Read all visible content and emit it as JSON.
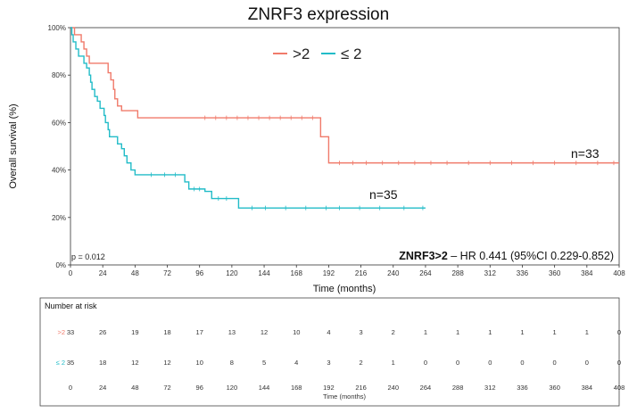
{
  "chart_data": {
    "type": "line",
    "title": "ZNRF3 expression",
    "xlabel": "Time (months)",
    "ylabel": "Overall survival (%)",
    "xlim": [
      0,
      408
    ],
    "ylim": [
      0,
      100
    ],
    "x_ticks": [
      "0",
      "24",
      "48",
      "72",
      "96",
      "120",
      "144",
      "168",
      "192",
      "216",
      "240",
      "264",
      "288",
      "312",
      "336",
      "360",
      "384",
      "408"
    ],
    "y_ticks": [
      "0%",
      "20%",
      "40%",
      "60%",
      "80%",
      "100%"
    ],
    "legend": {
      "position": "top",
      "separator": "—"
    },
    "series": [
      {
        "name": ">2",
        "color": "#F07A6A",
        "steps": [
          [
            0,
            100
          ],
          [
            3,
            97
          ],
          [
            8,
            94
          ],
          [
            10,
            91
          ],
          [
            12,
            88
          ],
          [
            14,
            85
          ],
          [
            28,
            81
          ],
          [
            30,
            78
          ],
          [
            32,
            74
          ],
          [
            33,
            70
          ],
          [
            35,
            67
          ],
          [
            38,
            65
          ],
          [
            50,
            62
          ],
          [
            185,
            62
          ],
          [
            186,
            54
          ],
          [
            190,
            54
          ],
          [
            192,
            43
          ],
          [
            408,
            43
          ]
        ],
        "censor_x": [
          100,
          108,
          116,
          124,
          132,
          140,
          148,
          156,
          164,
          172,
          180,
          200,
          210,
          220,
          232,
          244,
          256,
          268,
          280,
          296,
          312,
          328,
          344,
          360,
          376,
          392,
          404
        ],
        "end_label": "n=33"
      },
      {
        "name": "≤ 2",
        "color": "#22BCC8",
        "steps": [
          [
            0,
            100
          ],
          [
            1,
            97
          ],
          [
            2,
            94
          ],
          [
            4,
            91
          ],
          [
            6,
            88
          ],
          [
            10,
            85
          ],
          [
            12,
            83
          ],
          [
            14,
            80
          ],
          [
            15,
            77
          ],
          [
            16,
            74
          ],
          [
            18,
            71
          ],
          [
            20,
            69
          ],
          [
            22,
            66
          ],
          [
            25,
            63
          ],
          [
            26,
            60
          ],
          [
            28,
            57
          ],
          [
            29,
            54
          ],
          [
            35,
            51
          ],
          [
            38,
            49
          ],
          [
            40,
            46
          ],
          [
            42,
            43
          ],
          [
            45,
            40
          ],
          [
            48,
            38
          ],
          [
            82,
            38
          ],
          [
            85,
            35
          ],
          [
            88,
            32
          ],
          [
            100,
            31
          ],
          [
            105,
            28
          ],
          [
            122,
            28
          ],
          [
            125,
            24
          ],
          [
            264,
            24
          ]
        ],
        "censor_x": [
          60,
          70,
          78,
          92,
          96,
          110,
          116,
          135,
          145,
          160,
          175,
          190,
          200,
          215,
          230,
          248,
          262
        ],
        "end_label": "n=35"
      }
    ],
    "annotations": {
      "p_value": "p = 0.012",
      "hr_bold": "ZNRF3>2",
      "hr_rest": " – HR 0.441 (95%CI 0.229-0.852)"
    },
    "risk_table": {
      "title": "Number at risk",
      "xlabel": "Time (months)",
      "rows": [
        {
          "label": ">2",
          "color": "#F07A6A",
          "values": [
            "33",
            "26",
            "19",
            "18",
            "17",
            "13",
            "12",
            "10",
            "4",
            "3",
            "2",
            "1",
            "1",
            "1",
            "1",
            "1",
            "1",
            "0"
          ]
        },
        {
          "label": "≤ 2",
          "color": "#22BCC8",
          "values": [
            "35",
            "18",
            "12",
            "12",
            "10",
            "8",
            "5",
            "4",
            "3",
            "2",
            "1",
            "0",
            "0",
            "0",
            "0",
            "0",
            "0",
            "0"
          ]
        }
      ]
    }
  }
}
